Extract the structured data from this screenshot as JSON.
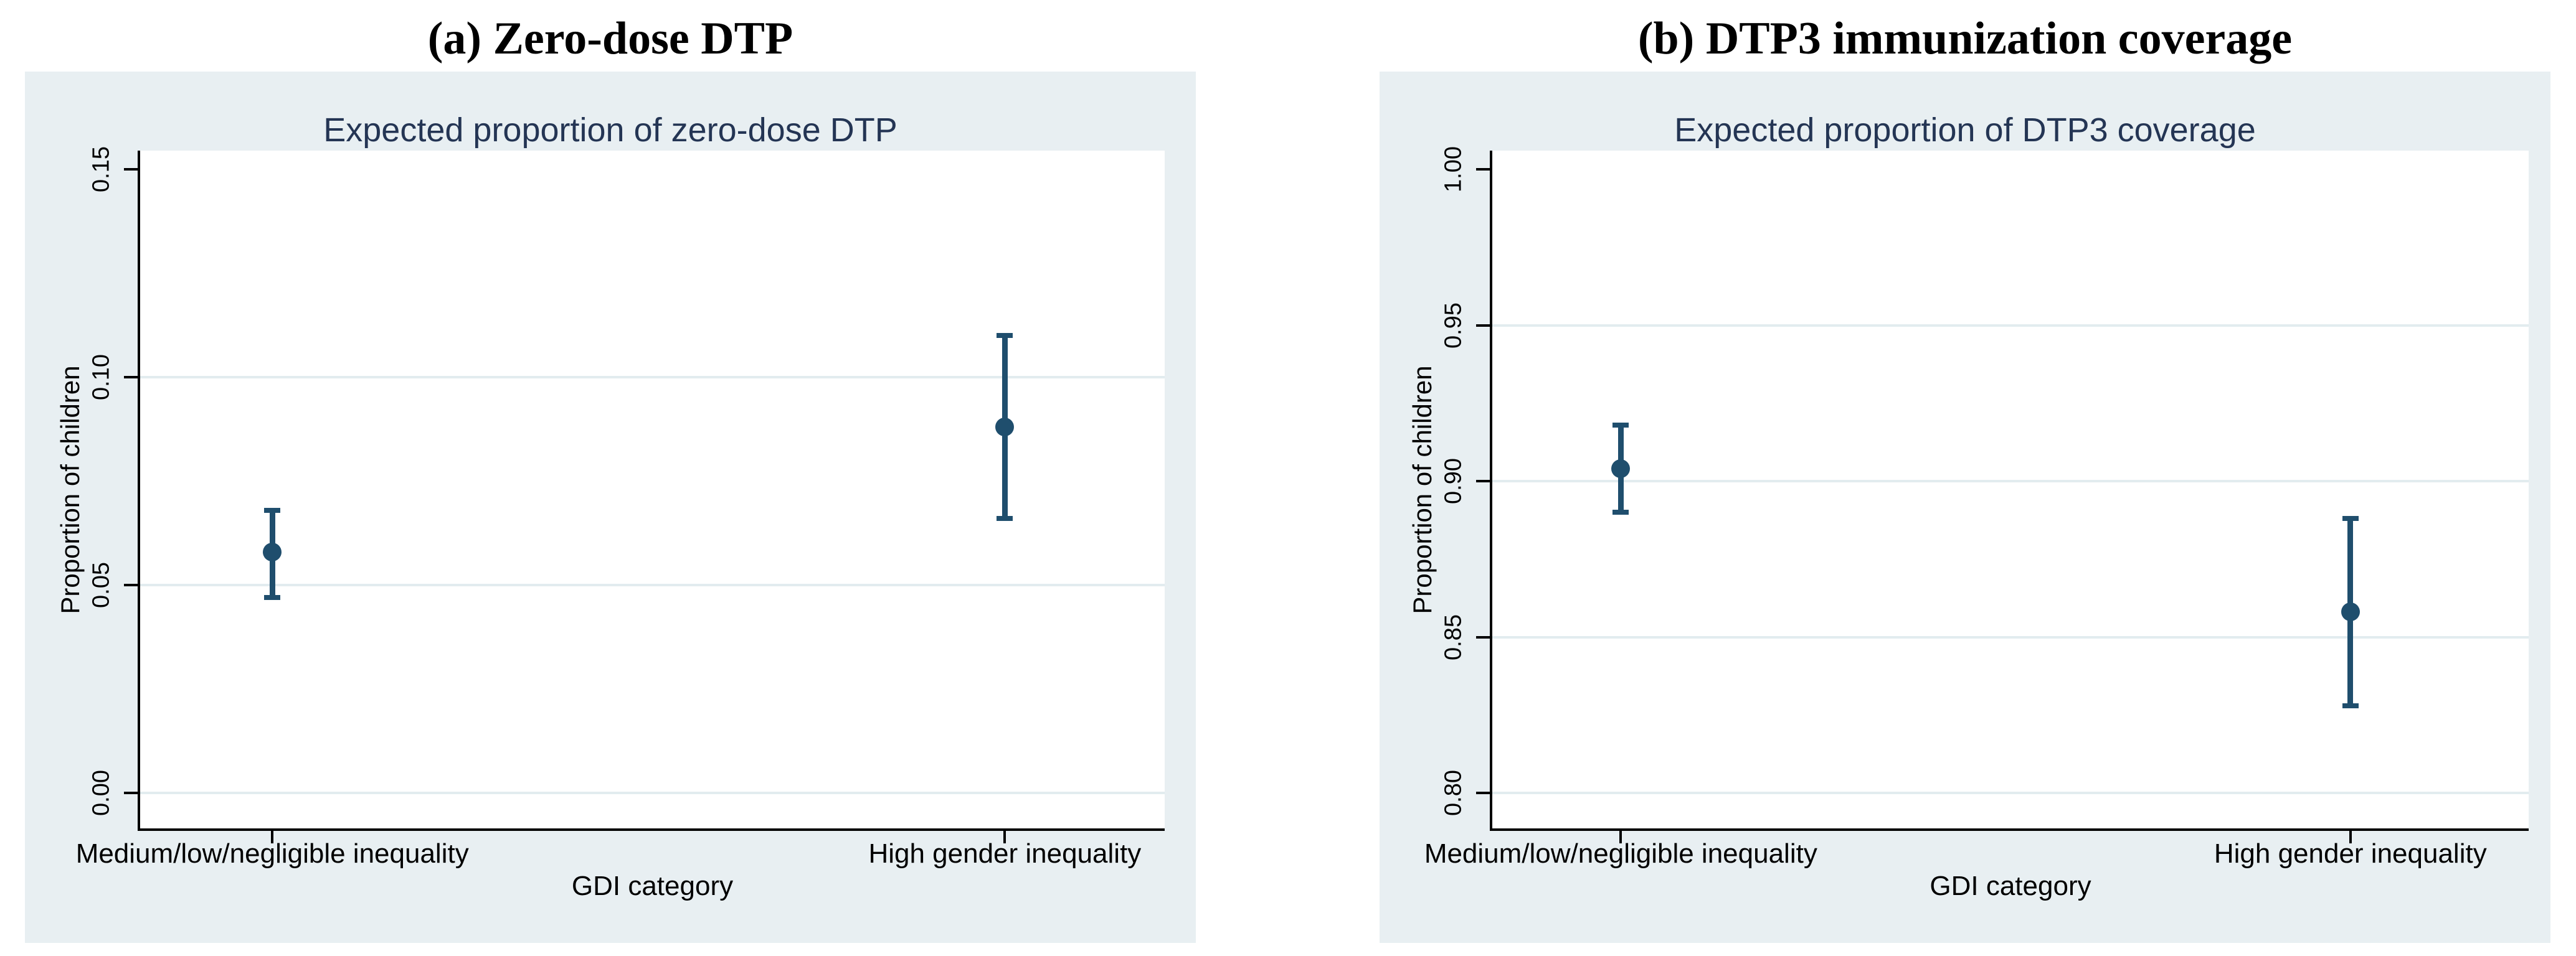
{
  "figure": {
    "background": "#ffffff",
    "panel_background": "#e8eff2",
    "plot_background": "#ffffff",
    "grid_color": "#e2ecef",
    "axis_color": "#000000",
    "marker_color": "#1f4e6d",
    "outer_title_color": "#000000",
    "inner_title_color": "#243554",
    "text_color": "#000000"
  },
  "chart_data": [
    {
      "type": "scatter",
      "panel_label": "(a) Zero-dose DTP",
      "title": "Expected proportion of zero-dose DTP",
      "xlabel": "GDI category",
      "ylabel": "Proportion of children",
      "categories": [
        "Medium/low/negligible inequality",
        "High gender inequality"
      ],
      "ylim": [
        0,
        0.15
      ],
      "yticks": [
        {
          "value": 0.0,
          "label": "0.00"
        },
        {
          "value": 0.05,
          "label": "0.05"
        },
        {
          "value": 0.1,
          "label": "0.10"
        },
        {
          "value": 0.15,
          "label": "0.15"
        }
      ],
      "grid": true,
      "legend": "none",
      "series": [
        {
          "name": "Expected proportion of zero-dose DTP",
          "points": [
            {
              "category": "Medium/low/negligible inequality",
              "estimate": 0.058,
              "ci_low": 0.047,
              "ci_high": 0.068
            },
            {
              "category": "High gender inequality",
              "estimate": 0.088,
              "ci_low": 0.066,
              "ci_high": 0.11
            }
          ]
        }
      ]
    },
    {
      "type": "scatter",
      "panel_label": "(b) DTP3 immunization coverage",
      "title": "Expected proportion of DTP3 coverage",
      "xlabel": "GDI category",
      "ylabel": "Proportion of children",
      "categories": [
        "Medium/low/negligible inequality",
        "High gender inequality"
      ],
      "ylim": [
        0.8,
        1.0
      ],
      "yticks": [
        {
          "value": 0.8,
          "label": "0.80"
        },
        {
          "value": 0.85,
          "label": "0.85"
        },
        {
          "value": 0.9,
          "label": "0.90"
        },
        {
          "value": 0.95,
          "label": "0.95"
        },
        {
          "value": 1.0,
          "label": "1.00"
        }
      ],
      "grid": true,
      "legend": "none",
      "series": [
        {
          "name": "Expected proportion of DTP3 coverage",
          "points": [
            {
              "category": "Medium/low/negligible inequality",
              "estimate": 0.904,
              "ci_low": 0.89,
              "ci_high": 0.918
            },
            {
              "category": "High gender inequality",
              "estimate": 0.858,
              "ci_low": 0.828,
              "ci_high": 0.888
            }
          ]
        }
      ]
    }
  ]
}
